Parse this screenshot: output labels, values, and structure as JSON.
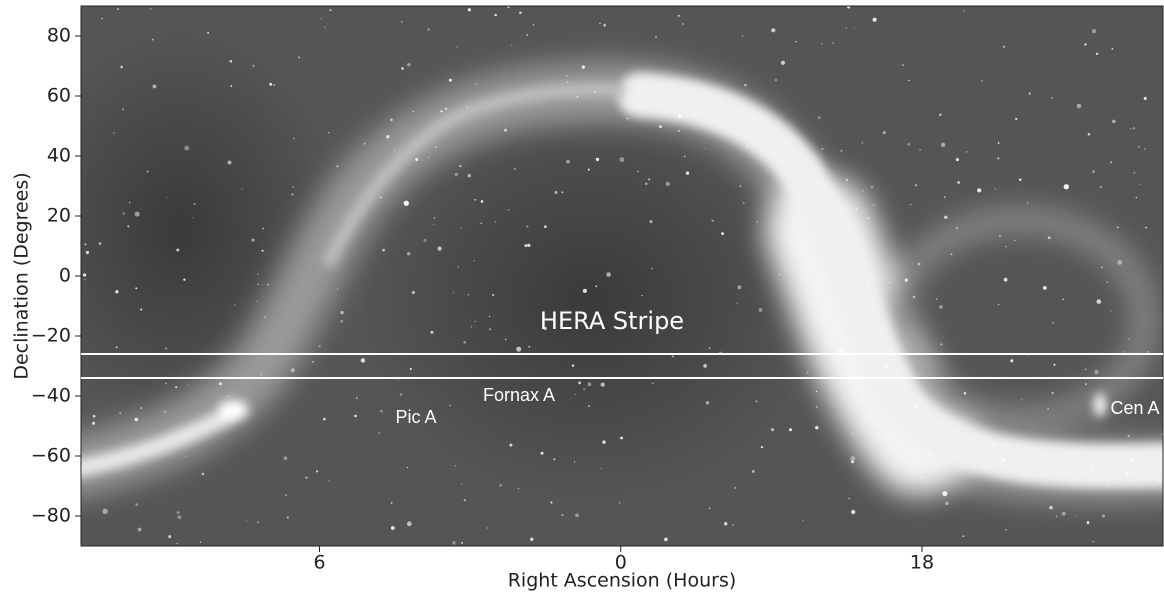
{
  "chart_data": {
    "type": "skymap",
    "xlabel": "Right Ascension (Hours)",
    "ylabel": "Declination (Degrees)",
    "xlim": [
      10.75,
      -10.8
    ],
    "xticks": [
      6,
      0,
      {
        "value": -6,
        "label": "18"
      }
    ],
    "ylim": [
      -90,
      90
    ],
    "yticks": [
      {
        "value": -80,
        "label": "−80"
      },
      {
        "value": -60,
        "label": "−60"
      },
      {
        "value": -40,
        "label": "−40"
      },
      {
        "value": -20,
        "label": "−20"
      },
      0,
      20,
      40,
      60,
      80
    ],
    "hlines": [
      -26,
      -34
    ],
    "hline_color": "#ffffff",
    "annotations": [
      "HERA Stripe",
      "Fornax A",
      "Pic A",
      "Cen A"
    ]
  }
}
